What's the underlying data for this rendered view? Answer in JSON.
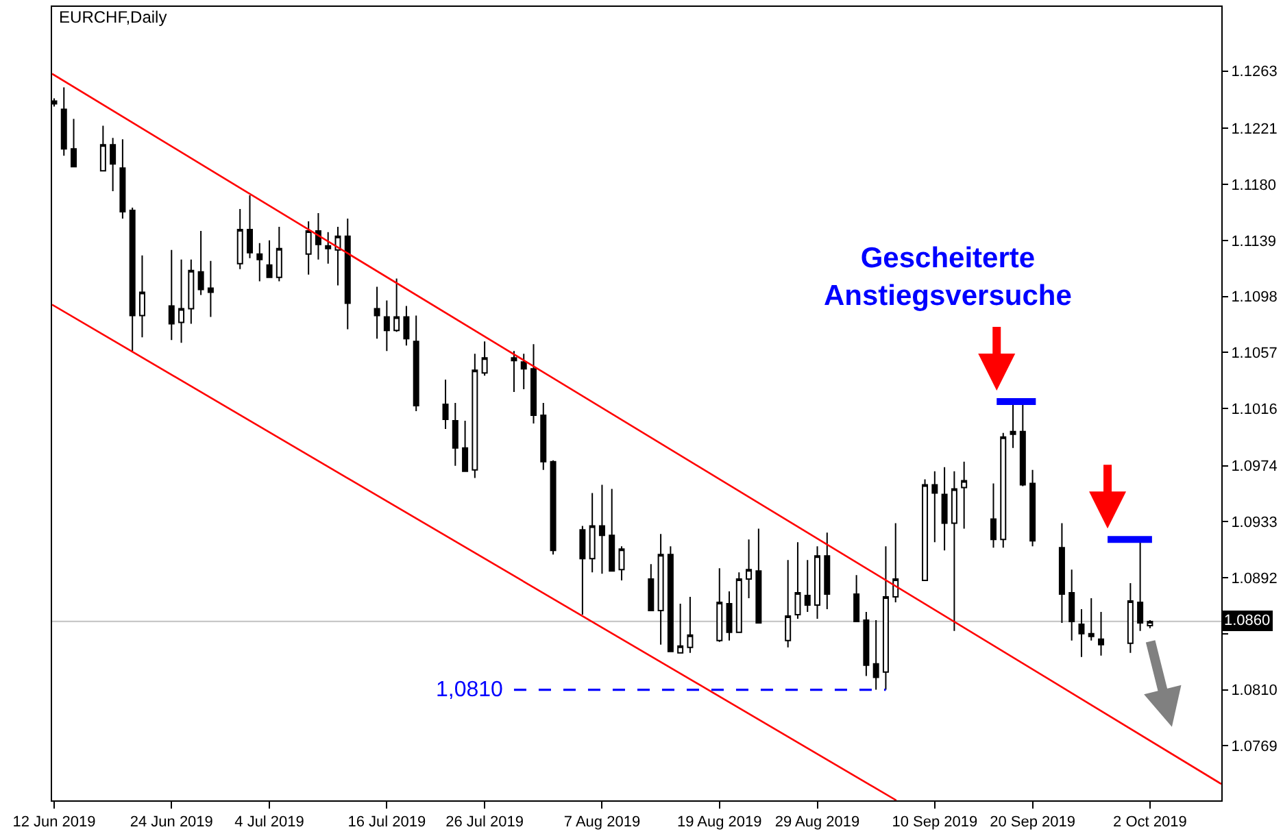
{
  "chart_data": {
    "type": "candlestick",
    "title": "EURCHF,Daily",
    "color": "#000000",
    "x": [
      "2019-06-12",
      "2019-06-13",
      "2019-06-14",
      "2019-06-17",
      "2019-06-18",
      "2019-06-19",
      "2019-06-20",
      "2019-06-21",
      "2019-06-24",
      "2019-06-25",
      "2019-06-26",
      "2019-06-27",
      "2019-06-28",
      "2019-07-01",
      "2019-07-02",
      "2019-07-03",
      "2019-07-04",
      "2019-07-05",
      "2019-07-08",
      "2019-07-09",
      "2019-07-10",
      "2019-07-11",
      "2019-07-12",
      "2019-07-15",
      "2019-07-16",
      "2019-07-17",
      "2019-07-18",
      "2019-07-19",
      "2019-07-22",
      "2019-07-23",
      "2019-07-24",
      "2019-07-25",
      "2019-07-26",
      "2019-07-29",
      "2019-07-30",
      "2019-07-31",
      "2019-08-01",
      "2019-08-02",
      "2019-08-05",
      "2019-08-06",
      "2019-08-07",
      "2019-08-08",
      "2019-08-09",
      "2019-08-12",
      "2019-08-13",
      "2019-08-14",
      "2019-08-15",
      "2019-08-16",
      "2019-08-19",
      "2019-08-20",
      "2019-08-21",
      "2019-08-22",
      "2019-08-23",
      "2019-08-26",
      "2019-08-27",
      "2019-08-28",
      "2019-08-29",
      "2019-08-30",
      "2019-09-02",
      "2019-09-03",
      "2019-09-04",
      "2019-09-05",
      "2019-09-06",
      "2019-09-09",
      "2019-09-10",
      "2019-09-11",
      "2019-09-12",
      "2019-09-13",
      "2019-09-16",
      "2019-09-17",
      "2019-09-18",
      "2019-09-19",
      "2019-09-20",
      "2019-09-23",
      "2019-09-24",
      "2019-09-25",
      "2019-09-26",
      "2019-09-27",
      "2019-09-30",
      "2019-10-01",
      "2019-10-02"
    ],
    "ohlc": [
      [
        1.1241,
        1.1243,
        1.1237,
        1.1239
      ],
      [
        1.1235,
        1.1251,
        1.1201,
        1.1206
      ],
      [
        1.1206,
        1.1228,
        1.1193,
        1.1193
      ],
      [
        1.119,
        1.1223,
        1.119,
        1.1209
      ],
      [
        1.1209,
        1.1214,
        1.1175,
        1.1195
      ],
      [
        1.1192,
        1.1213,
        1.1155,
        1.116
      ],
      [
        1.1161,
        1.1163,
        1.1058,
        1.1084
      ],
      [
        1.1084,
        1.1128,
        1.1068,
        1.1101
      ],
      [
        1.1091,
        1.1132,
        1.1066,
        1.1078
      ],
      [
        1.1079,
        1.1125,
        1.1064,
        1.1089
      ],
      [
        1.1089,
        1.1125,
        1.1078,
        1.1117
      ],
      [
        1.1116,
        1.1146,
        1.1099,
        1.1103
      ],
      [
        1.1104,
        1.1124,
        1.1083,
        1.1101
      ],
      [
        1.1122,
        1.1162,
        1.1118,
        1.1147
      ],
      [
        1.1147,
        1.1172,
        1.1126,
        1.113
      ],
      [
        1.1129,
        1.1137,
        1.1109,
        1.1125
      ],
      [
        1.1121,
        1.1139,
        1.1112,
        1.1112
      ],
      [
        1.1112,
        1.1149,
        1.1109,
        1.1133
      ],
      [
        1.1129,
        1.1153,
        1.1114,
        1.1146
      ],
      [
        1.1146,
        1.1159,
        1.1125,
        1.1136
      ],
      [
        1.1135,
        1.1145,
        1.1122,
        1.1133
      ],
      [
        1.1132,
        1.1149,
        1.1106,
        1.1142
      ],
      [
        1.1142,
        1.1155,
        1.1074,
        1.1093
      ],
      [
        1.1089,
        1.1105,
        1.1067,
        1.1084
      ],
      [
        1.1083,
        1.1095,
        1.1058,
        1.1073
      ],
      [
        1.1073,
        1.1111,
        1.1072,
        1.1083
      ],
      [
        1.1083,
        1.1091,
        1.1062,
        1.1067
      ],
      [
        1.1065,
        1.1084,
        1.1014,
        1.1018
      ],
      [
        1.1019,
        1.1037,
        1.1001,
        1.1008
      ],
      [
        1.1007,
        1.102,
        1.0974,
        1.0987
      ],
      [
        1.0987,
        1.1007,
        1.097,
        1.097
      ],
      [
        1.0971,
        1.1056,
        1.0965,
        1.1044
      ],
      [
        1.1042,
        1.1065,
        1.104,
        1.1053
      ],
      [
        1.1053,
        1.1058,
        1.1028,
        1.1051
      ],
      [
        1.105,
        1.1056,
        1.103,
        1.1045
      ],
      [
        1.1045,
        1.1063,
        1.1005,
        1.1011
      ],
      [
        1.1011,
        1.102,
        1.0971,
        1.0977
      ],
      [
        1.0977,
        1.0978,
        1.0909,
        1.0912
      ],
      [
        1.0927,
        1.093,
        1.0865,
        1.0906
      ],
      [
        1.0906,
        1.0954,
        1.0896,
        1.093
      ],
      [
        1.093,
        1.096,
        1.0895,
        1.0923
      ],
      [
        1.0923,
        1.0957,
        1.0897,
        1.0897
      ],
      [
        1.0898,
        1.0915,
        1.089,
        1.0913
      ],
      [
        1.0891,
        1.0902,
        1.0868,
        1.0868
      ],
      [
        1.0868,
        1.0924,
        1.0843,
        1.0909
      ],
      [
        1.0909,
        1.0915,
        1.0838,
        1.0838
      ],
      [
        1.0837,
        1.0873,
        1.0837,
        1.0842
      ],
      [
        1.0841,
        1.0878,
        1.0837,
        1.085
      ],
      [
        1.0846,
        1.0899,
        1.0845,
        1.0874
      ],
      [
        1.0873,
        1.0882,
        1.0846,
        1.0852
      ],
      [
        1.0852,
        1.0896,
        1.0852,
        1.0891
      ],
      [
        1.0891,
        1.092,
        1.0877,
        1.0898
      ],
      [
        1.0897,
        1.0928,
        1.0859,
        1.0859
      ],
      [
        1.0846,
        1.0905,
        1.0841,
        1.0864
      ],
      [
        1.0865,
        1.0918,
        1.0862,
        1.0881
      ],
      [
        1.0879,
        1.0905,
        1.0867,
        1.0872
      ],
      [
        1.0872,
        1.0915,
        1.0862,
        1.0908
      ],
      [
        1.0908,
        1.0925,
        1.0869,
        1.088
      ],
      [
        1.088,
        1.0894,
        1.086,
        1.086
      ],
      [
        1.0861,
        1.0867,
        1.082,
        1.0828
      ],
      [
        1.0829,
        1.0861,
        1.081,
        1.0819
      ],
      [
        1.0823,
        1.0915,
        1.081,
        1.0878
      ],
      [
        1.0878,
        1.0932,
        1.0874,
        1.0891
      ],
      [
        1.089,
        1.0964,
        1.089,
        1.096
      ],
      [
        1.096,
        1.097,
        1.0918,
        1.0954
      ],
      [
        1.0953,
        1.0973,
        1.0912,
        1.0932
      ],
      [
        1.0932,
        1.097,
        1.0853,
        1.0957
      ],
      [
        1.0958,
        1.0977,
        1.0928,
        1.0963
      ],
      [
        1.0935,
        1.0961,
        1.0914,
        1.092
      ],
      [
        1.092,
        1.0998,
        1.0914,
        1.0995
      ],
      [
        1.0997,
        1.1021,
        1.0987,
        1.0999
      ],
      [
        1.0999,
        1.1021,
        1.0959,
        1.096
      ],
      [
        1.0961,
        1.0971,
        1.0915,
        1.0919
      ],
      [
        1.0914,
        1.0932,
        1.0859,
        1.088
      ],
      [
        1.0881,
        1.0898,
        1.0846,
        1.086
      ],
      [
        1.0858,
        1.0869,
        1.0834,
        1.0851
      ],
      [
        1.0851,
        1.0877,
        1.0846,
        1.0849
      ],
      [
        1.0847,
        1.0867,
        1.0835,
        1.0843
      ],
      [
        1.0844,
        1.0888,
        1.0837,
        1.0875
      ],
      [
        1.0874,
        1.092,
        1.0853,
        1.0859
      ],
      [
        1.0857,
        1.0861,
        1.0855,
        1.086
      ]
    ],
    "series": [
      {
        "type": "line",
        "color": "#ff0000",
        "x": [
          "2019-06-11T19:00",
          "2019-10-09T07:00"
        ],
        "values": [
          1.1261,
          1.0741
        ]
      },
      {
        "type": "line",
        "color": "#ff0000",
        "x": [
          "2019-06-11T19:00",
          "2019-09-06T02:00"
        ],
        "values": [
          1.1092,
          1.0729
        ]
      },
      {
        "type": "line",
        "color": "#0000ff",
        "line_style": "dashed",
        "x": [
          "2019-07-29",
          "2019-09-05"
        ],
        "values": [
          1.081,
          1.081
        ]
      },
      {
        "type": "line",
        "color": "#0000ff",
        "line_style": "solid",
        "x": [
          "2019-09-16T08:00",
          "2019-09-20T08:00"
        ],
        "values": [
          1.1021,
          1.1021
        ]
      },
      {
        "type": "line",
        "color": "#0000ff",
        "line_style": "solid",
        "x": [
          "2019-09-27T16:00",
          "2019-10-02T05:00"
        ],
        "values": [
          1.092,
          1.092
        ]
      }
    ],
    "ref_lines": [
      {
        "axis": "y",
        "value": 1.086,
        "label": "1.0860",
        "color": "#c8c8c8"
      }
    ],
    "annotations": [
      "Gescheiterte\nAnstiegsversuche",
      {
        "text": "1,0810",
        "x": "2019-07-29",
        "y": 1.081
      }
    ],
    "xlim": [
      "2019-06-11T19:00",
      "2019-10-09T07:00"
    ],
    "ylim": [
      1.0729,
      1.131
    ],
    "xticks": [
      {
        "value": "2019-06-12",
        "label": "12 Jun 2019"
      },
      {
        "value": "2019-06-24",
        "label": "24 Jun 2019"
      },
      {
        "value": "2019-07-04",
        "label": "4 Jul 2019"
      },
      {
        "value": "2019-07-16",
        "label": "16 Jul 2019"
      },
      {
        "value": "2019-07-26",
        "label": "26 Jul 2019"
      },
      {
        "value": "2019-08-07",
        "label": "7 Aug 2019"
      },
      {
        "value": "2019-08-19",
        "label": "19 Aug 2019"
      },
      {
        "value": "2019-08-29",
        "label": "29 Aug 2019"
      },
      {
        "value": "2019-09-10",
        "label": "10 Sep 2019"
      },
      {
        "value": "2019-09-20",
        "label": "20 Sep 2019"
      },
      {
        "value": "2019-10-02",
        "label": "2 Oct 2019"
      }
    ],
    "yticks": [
      1.1263,
      1.1221,
      {
        "value": 1.118,
        "label": "1.1180"
      },
      1.1139,
      1.1098,
      1.1057,
      1.1016,
      1.0974,
      1.0933,
      1.0892,
      {
        "value": 1.0851,
        "label": null
      },
      {
        "value": 1.081,
        "label": "1.0810"
      },
      1.0769
    ],
    "grid": false
  }
}
